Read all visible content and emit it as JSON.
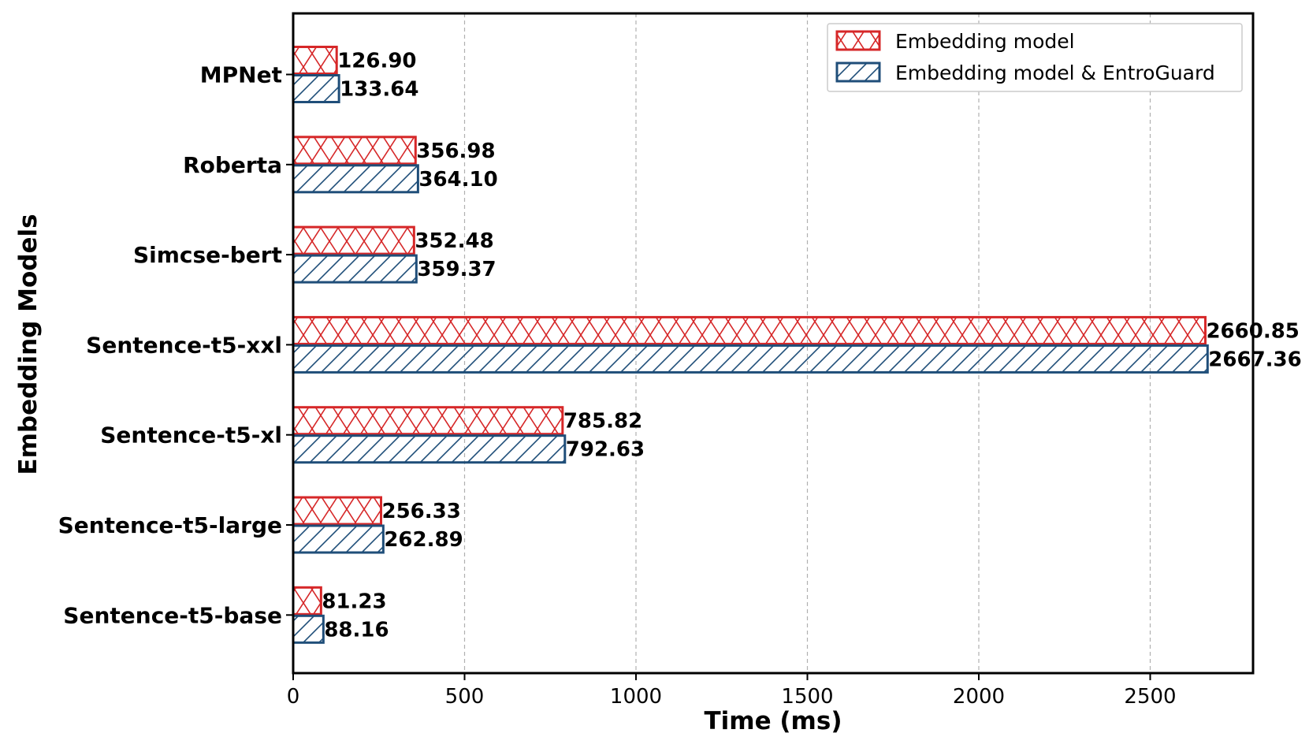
{
  "chart_data": {
    "type": "bar",
    "orientation": "horizontal",
    "title": "",
    "xlabel": "Time (ms)",
    "ylabel": "Embedding Models",
    "xlim": [
      0,
      2800
    ],
    "xticks": [
      "0",
      "500",
      "1000",
      "1500",
      "2000",
      "2500"
    ],
    "xtick_values": [
      0,
      500,
      1000,
      1500,
      2000,
      2500
    ],
    "grid": "vertical dashed",
    "legend_position": "top-right",
    "categories": [
      "MPNet",
      "Roberta",
      "Simcse-bert",
      "Sentence-t5-xxl",
      "Sentence-t5-xl",
      "Sentence-t5-large",
      "Sentence-t5-base"
    ],
    "series": [
      {
        "name": "Embedding model",
        "color": "#d62728",
        "hatch": "x",
        "values": [
          126.9,
          356.98,
          352.48,
          2660.85,
          785.82,
          256.33,
          81.23
        ],
        "labels": [
          "126.90",
          "356.98",
          "352.48",
          "2660.85",
          "785.82",
          "256.33",
          "81.23"
        ]
      },
      {
        "name": "Embedding model & EntroGuard",
        "color": "#1f4e79",
        "hatch": "/",
        "values": [
          133.64,
          364.1,
          359.37,
          2667.36,
          792.63,
          262.89,
          88.16
        ],
        "labels": [
          "133.64",
          "364.10",
          "359.37",
          "2667.36",
          "792.63",
          "262.89",
          "88.16"
        ]
      }
    ]
  }
}
